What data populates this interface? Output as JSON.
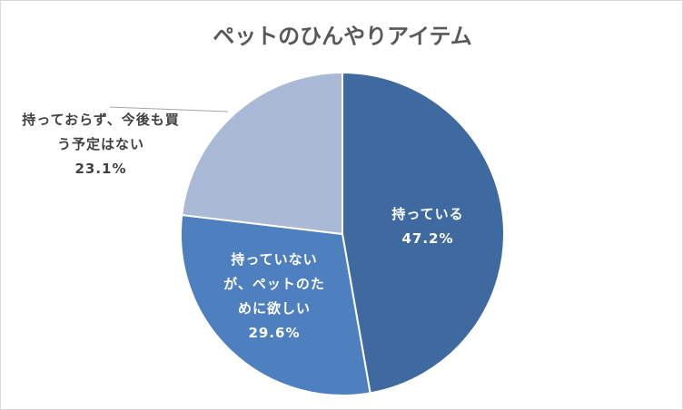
{
  "chart_data": {
    "type": "pie",
    "title": "ペットのひんやりアイテム",
    "categories": [
      "持っている",
      "持っていないが、ペットのために欲しい",
      "持っておらず、今後も買う予定はない"
    ],
    "values": [
      47.2,
      29.6,
      23.1
    ],
    "value_labels": [
      "47.2%",
      "29.6%",
      "23.1%"
    ],
    "colors": [
      "#3f6aa0",
      "#4e7fbe",
      "#a9b9d6"
    ]
  }
}
